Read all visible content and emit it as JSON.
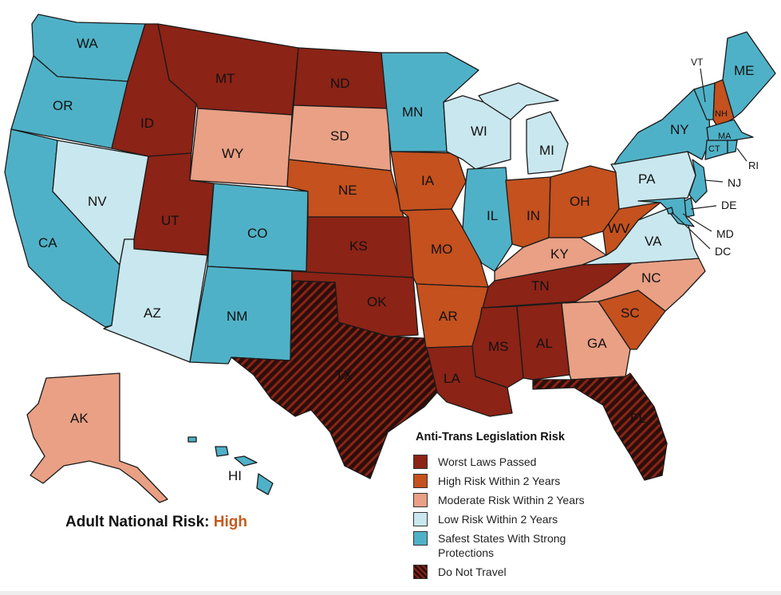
{
  "legend": {
    "title": "Anti-Trans Legislation Risk",
    "items": [
      {
        "label": "Worst Laws Passed",
        "color": "#8b2316"
      },
      {
        "label": "High Risk Within 2 Years",
        "color": "#c4511e"
      },
      {
        "label": "Moderate Risk Within 2 Years",
        "color": "#e9a085"
      },
      {
        "label": "Low Risk Within 2 Years",
        "color": "#c9e7ee"
      },
      {
        "label": "Safest States With Strong Protections",
        "color": "#4fb1c7"
      },
      {
        "label": "Do Not Travel",
        "color": "#2b0f0b"
      }
    ]
  },
  "national_risk": {
    "label": "Adult National Risk:",
    "value": "High",
    "value_color": "#c55a1f"
  },
  "states": {
    "WA": "safest",
    "OR": "safest",
    "CA": "safest",
    "NV": "low",
    "ID": "worst",
    "MT": "worst",
    "WY": "moderate",
    "UT": "worst",
    "AZ": "low",
    "CO": "safest",
    "NM": "safest",
    "ND": "worst",
    "SD": "moderate",
    "NE": "high",
    "KS": "worst",
    "OK": "worst",
    "TX": "do_not_travel",
    "MN": "safest",
    "IA": "high",
    "MO": "high",
    "AR": "high",
    "LA": "worst",
    "WI": "low",
    "IL": "safest",
    "MI": "low",
    "IN": "high",
    "OH": "high",
    "KY": "moderate",
    "TN": "worst",
    "MS": "worst",
    "AL": "worst",
    "GA": "moderate",
    "FL": "do_not_travel",
    "SC": "high",
    "NC": "moderate",
    "VA": "low",
    "WV": "high",
    "PA": "low",
    "NY": "safest",
    "VT": "safest",
    "NH": "high",
    "ME": "safest",
    "MA": "safest",
    "RI": "safest",
    "CT": "safest",
    "NJ": "safest",
    "DE": "safest",
    "MD": "safest",
    "DC": "safest",
    "AK": "moderate",
    "HI": "safest"
  }
}
